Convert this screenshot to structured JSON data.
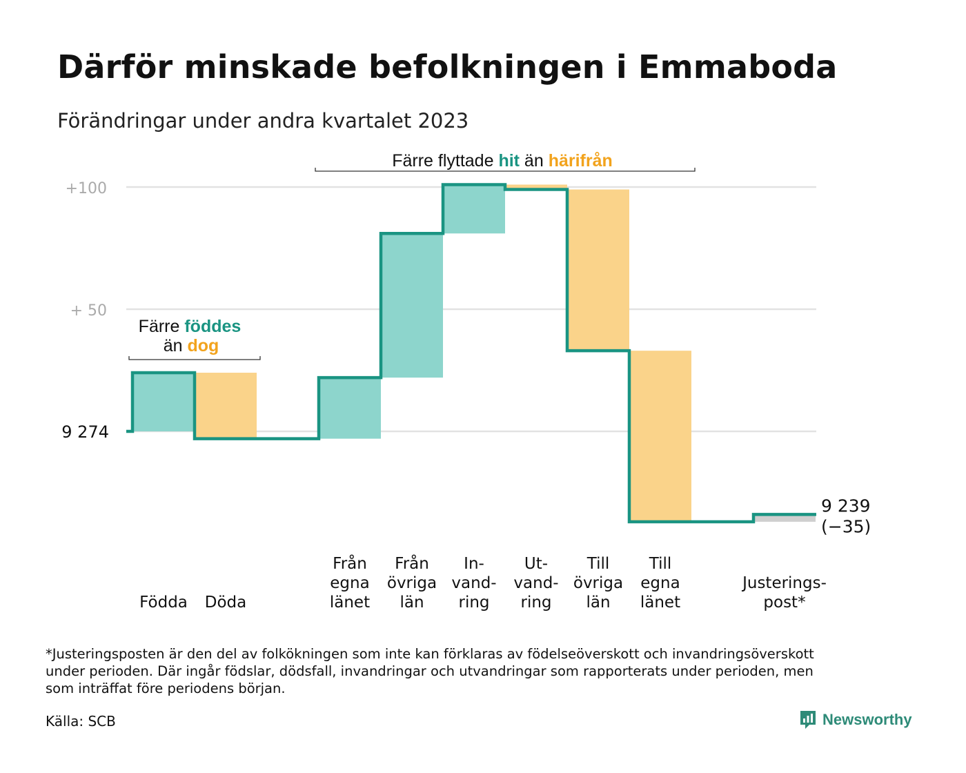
{
  "title": "Därför minskade befolkningen i Emmaboda",
  "subtitle": "Förändringar under andra kvartalet 2023",
  "colors": {
    "increase": "#8dd5cc",
    "decrease": "#fad38a",
    "adjust": "#cfcfcf",
    "line": "#1a9482",
    "accent_hit": "#1a9482",
    "accent_dog": "#f2a31d",
    "grid": "#e2e2e2",
    "tick": "#aaaaaa"
  },
  "chart_data": {
    "type": "waterfall",
    "start_value": 9274,
    "start_label": "9  274",
    "end_value": 9239,
    "end_label": "9 239",
    "end_change_label": "(−35)",
    "yticks": [
      {
        "value": 100,
        "label": "+100"
      },
      {
        "value": 50,
        "label": "+  50"
      }
    ],
    "ylim": [
      -45,
      105
    ],
    "steps": [
      {
        "label": [
          "Födda"
        ],
        "value": 24,
        "kind": "increase"
      },
      {
        "label": [
          "Döda"
        ],
        "value": -27,
        "kind": "decrease"
      },
      {
        "label": [
          "Från",
          "egna",
          "länet"
        ],
        "value": 25,
        "kind": "increase"
      },
      {
        "label": [
          "Från",
          "övriga",
          "län"
        ],
        "value": 59,
        "kind": "increase"
      },
      {
        "label": [
          "In-",
          "vand-",
          "ring"
        ],
        "value": 20,
        "kind": "increase"
      },
      {
        "label": [
          "Ut-",
          "vand-",
          "ring"
        ],
        "value": -2,
        "kind": "decrease"
      },
      {
        "label": [
          "Till",
          "övriga",
          "län"
        ],
        "value": -66,
        "kind": "decrease"
      },
      {
        "label": [
          "Till",
          "egna",
          "länet"
        ],
        "value": -70,
        "kind": "decrease"
      },
      {
        "label": [
          "Justerings-",
          "post*"
        ],
        "value": 3,
        "kind": "adjust"
      }
    ],
    "annotations": [
      {
        "parts": [
          [
            "Färre ",
            "plain"
          ],
          [
            "föddes",
            "hit"
          ]
        ],
        "parts2": [
          [
            "än ",
            "plain"
          ],
          [
            "dog",
            "dog"
          ]
        ]
      },
      {
        "parts": [
          [
            "Färre flyttade ",
            "plain"
          ],
          [
            "hit",
            "hit"
          ],
          [
            " än ",
            "plain"
          ],
          [
            "härifrån",
            "dog"
          ]
        ]
      }
    ]
  },
  "footnote": "*Justeringsposten är den del av folkökningen som inte kan förklaras av födelseöverskott och invandringsöverskott\nunder perioden. Där ingår födslar, dödsfall, invandringar och utvandringar som rapporterats under perioden, men\nsom inträffat före periodens början.",
  "source": "Källa: SCB",
  "logo_text": "Newsworthy"
}
